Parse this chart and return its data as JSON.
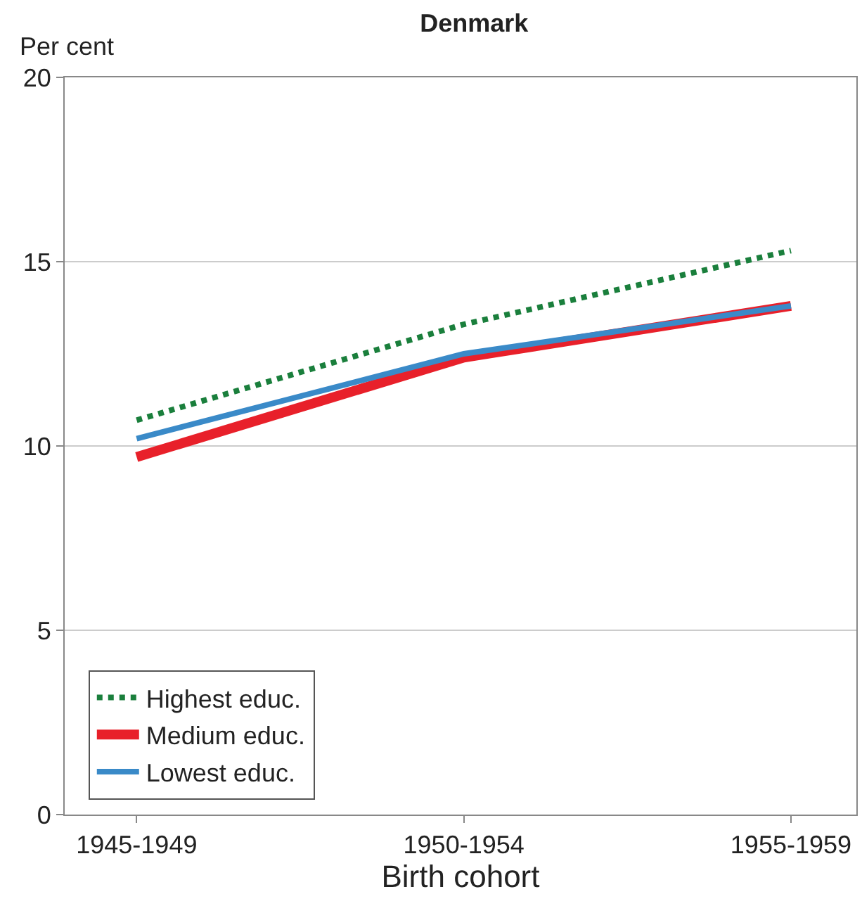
{
  "chart_data": {
    "type": "line",
    "title": "Denmark",
    "ylabel": "Per cent",
    "xlabel": "Birth cohort",
    "categories": [
      "1945-1949",
      "1950-1954",
      "1955-1959"
    ],
    "series": [
      {
        "name": "Highest educ.",
        "color": "#1a7f3c",
        "line_style": "dotted",
        "values": [
          10.7,
          13.3,
          15.3
        ]
      },
      {
        "name": "Medium educ.",
        "color": "#e8202a",
        "line_style": "solid",
        "values": [
          9.7,
          12.4,
          13.8
        ]
      },
      {
        "name": "Lowest educ.",
        "color": "#3a8ac8",
        "line_style": "solid",
        "values": [
          10.2,
          12.5,
          13.8
        ]
      }
    ],
    "ylim": [
      0,
      20
    ],
    "yticks": [
      0,
      5,
      10,
      15,
      20
    ],
    "grid": "y",
    "legend": "bottom left",
    "marker": "none"
  }
}
